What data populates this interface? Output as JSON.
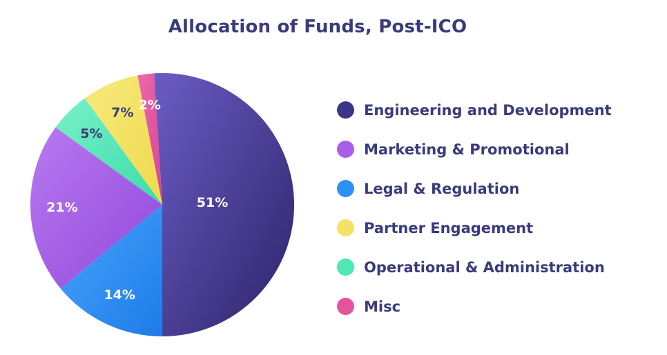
{
  "chart_data": {
    "type": "pie",
    "title": "Allocation of Funds, Post-ICO",
    "slices": [
      {
        "name": "Engineering and Development",
        "value": 51,
        "label": "51%",
        "color": "#3d3586",
        "gradient": [
          "#6b5cc4",
          "#2c2469"
        ],
        "label_color": "#ffffff"
      },
      {
        "name": "Misc",
        "value": 2,
        "label": "2%",
        "color": "#e4549b",
        "gradient": [
          "#ec6aae",
          "#d94390"
        ],
        "label_color": "#ffffff"
      },
      {
        "name": "Partner Engagement",
        "value": 7,
        "label": "7%",
        "color": "#f4e266",
        "gradient": [
          "#f7ea7c",
          "#f0d94e"
        ],
        "label_color": "#3a3b7c"
      },
      {
        "name": "Operational & Administration",
        "value": 5,
        "label": "5%",
        "color": "#4ee8b4",
        "gradient": [
          "#78f0c8",
          "#3bdca8"
        ],
        "label_color": "#3a3b7c"
      },
      {
        "name": "Marketing & Promotional",
        "value": 21,
        "label": "21%",
        "color": "#a65fe6",
        "gradient": [
          "#b77af0",
          "#9247db"
        ],
        "label_color": "#ffffff"
      },
      {
        "name": "Legal & Regulation",
        "value": 14,
        "label": "14%",
        "color": "#2f8ff5",
        "gradient": [
          "#4aa5fb",
          "#1d7be8"
        ],
        "label_color": "#ffffff"
      }
    ],
    "legend_position": "right",
    "legend": [
      {
        "name": "Engineering and Development",
        "color": "#3d3586"
      },
      {
        "name": "Marketing & Promotional",
        "color": "#a65fe6"
      },
      {
        "name": "Legal & Regulation",
        "color": "#2f8ff5"
      },
      {
        "name": "Partner Engagement",
        "color": "#f4e266"
      },
      {
        "name": "Operational & Administration",
        "color": "#4ee8b4"
      },
      {
        "name": "Misc",
        "color": "#e4549b"
      }
    ]
  }
}
